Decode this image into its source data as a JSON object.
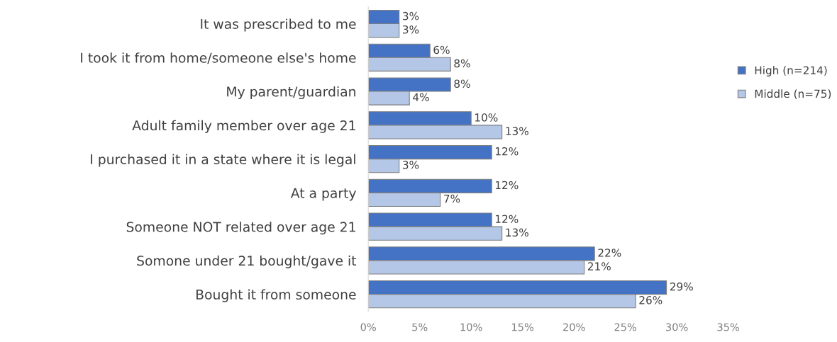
{
  "chart_data": {
    "type": "bar",
    "orientation": "horizontal",
    "categories": [
      "It was prescribed to me",
      "I took it from home/someone else's home",
      "My parent/guardian",
      "Adult family member over age 21",
      "I purchased it in a state where it is legal",
      "At a party",
      "Someone NOT related over age 21",
      "Somone under 21 bought/gave it",
      "Bought it from someone"
    ],
    "series": [
      {
        "name": "High (n=214)",
        "color": "#4472c4",
        "values": [
          3,
          6,
          8,
          10,
          12,
          12,
          12,
          22,
          29
        ],
        "value_labels": [
          "3%",
          "6%",
          "8%",
          "10%",
          "12%",
          "12%",
          "12%",
          "22%",
          "29%"
        ]
      },
      {
        "name": "Middle (n=75)",
        "color": "#b4c7e7",
        "values": [
          3,
          8,
          4,
          13,
          3,
          7,
          13,
          21,
          26
        ],
        "value_labels": [
          "3%",
          "8%",
          "4%",
          "13%",
          "3%",
          "7%",
          "13%",
          "21%",
          "26%"
        ]
      }
    ],
    "xlim": [
      0,
      35
    ],
    "xticks": [
      {
        "value": 0,
        "label": "0%"
      },
      {
        "value": 5,
        "label": "5%"
      },
      {
        "value": 10,
        "label": "10%"
      },
      {
        "value": 15,
        "label": "15%"
      },
      {
        "value": 20,
        "label": "20%"
      },
      {
        "value": 25,
        "label": "25%"
      },
      {
        "value": 30,
        "label": "30%"
      },
      {
        "value": 35,
        "label": "35%"
      }
    ],
    "grid": false,
    "legend": "right"
  }
}
